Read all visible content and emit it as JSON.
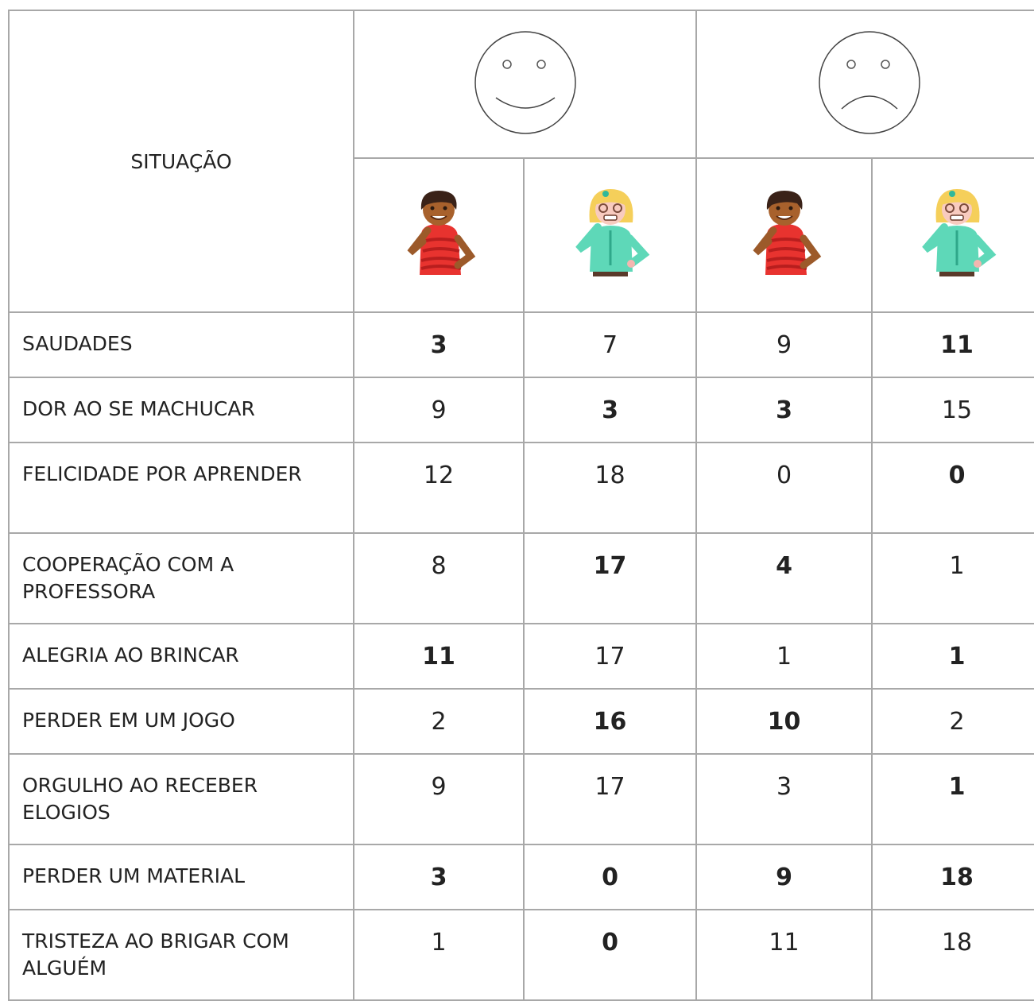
{
  "table": {
    "header": {
      "situation": "SITUAÇÃO"
    },
    "rows": [
      {
        "label": "SAUDADES",
        "values": [
          3,
          7,
          9,
          11
        ],
        "bold": [
          true,
          false,
          false,
          true
        ]
      },
      {
        "label": "DOR AO SE MACHUCAR",
        "values": [
          9,
          3,
          3,
          15
        ],
        "bold": [
          false,
          true,
          true,
          false
        ]
      },
      {
        "label": "FELICIDADE POR APRENDER",
        "values": [
          12,
          18,
          0,
          0
        ],
        "bold": [
          false,
          false,
          false,
          true
        ]
      },
      {
        "label": "COOPERAÇÃO COM A PROFESSORA",
        "values": [
          8,
          17,
          4,
          1
        ],
        "bold": [
          false,
          true,
          true,
          false
        ]
      },
      {
        "label": "ALEGRIA AO BRINCAR",
        "values": [
          11,
          17,
          1,
          1
        ],
        "bold": [
          true,
          false,
          false,
          true
        ]
      },
      {
        "label": "PERDER EM UM JOGO",
        "values": [
          2,
          16,
          10,
          2
        ],
        "bold": [
          false,
          true,
          true,
          false
        ]
      },
      {
        "label": "ORGULHO AO RECEBER ELOGIOS",
        "values": [
          9,
          17,
          3,
          1
        ],
        "bold": [
          false,
          false,
          false,
          true
        ]
      },
      {
        "label": "PERDER UM MATERIAL",
        "values": [
          3,
          0,
          9,
          18
        ],
        "bold": [
          true,
          true,
          true,
          true
        ]
      },
      {
        "label": "TRISTEZA AO BRIGAR COM ALGUÉM",
        "values": [
          1,
          0,
          11,
          18
        ],
        "bold": [
          false,
          true,
          false,
          false
        ]
      }
    ]
  }
}
